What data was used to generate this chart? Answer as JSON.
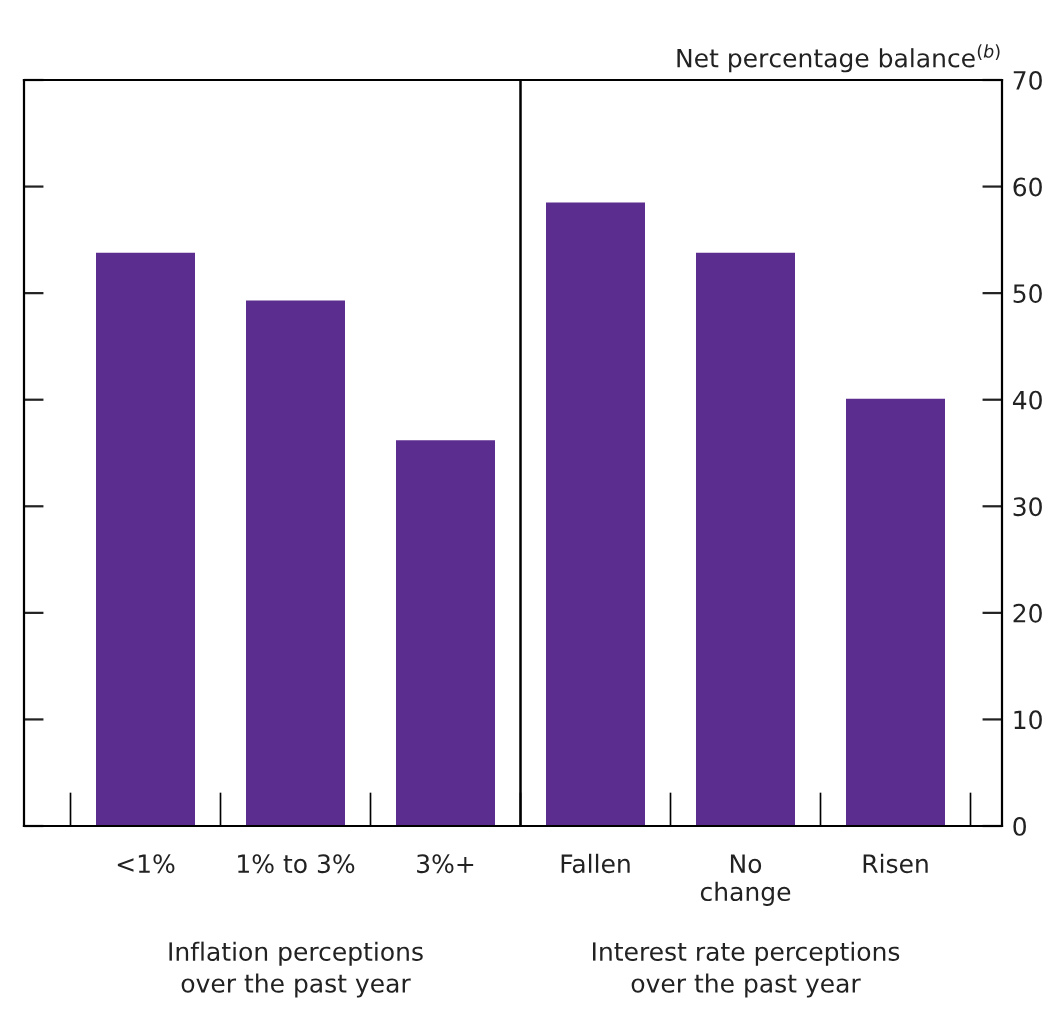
{
  "chart_data": {
    "type": "bar",
    "ylabel": "Net percentage balance$^{(b)}$",
    "categories": [
      "<1%",
      "1% to 3%",
      "3%+",
      "Fallen",
      "No\nchange",
      "Risen"
    ],
    "values": [
      53.8,
      49.3,
      36.2,
      58.5,
      53.8,
      40.1
    ],
    "color": "#5b2d8e",
    "ylim": [
      0,
      70
    ],
    "yticks": [
      0,
      10,
      20,
      30,
      40,
      50,
      60,
      70
    ],
    "grid": false,
    "legend": false,
    "annotations": [
      "Inflation perceptions\nover the past year",
      "Interest rate perceptions\nover the past year"
    ]
  }
}
